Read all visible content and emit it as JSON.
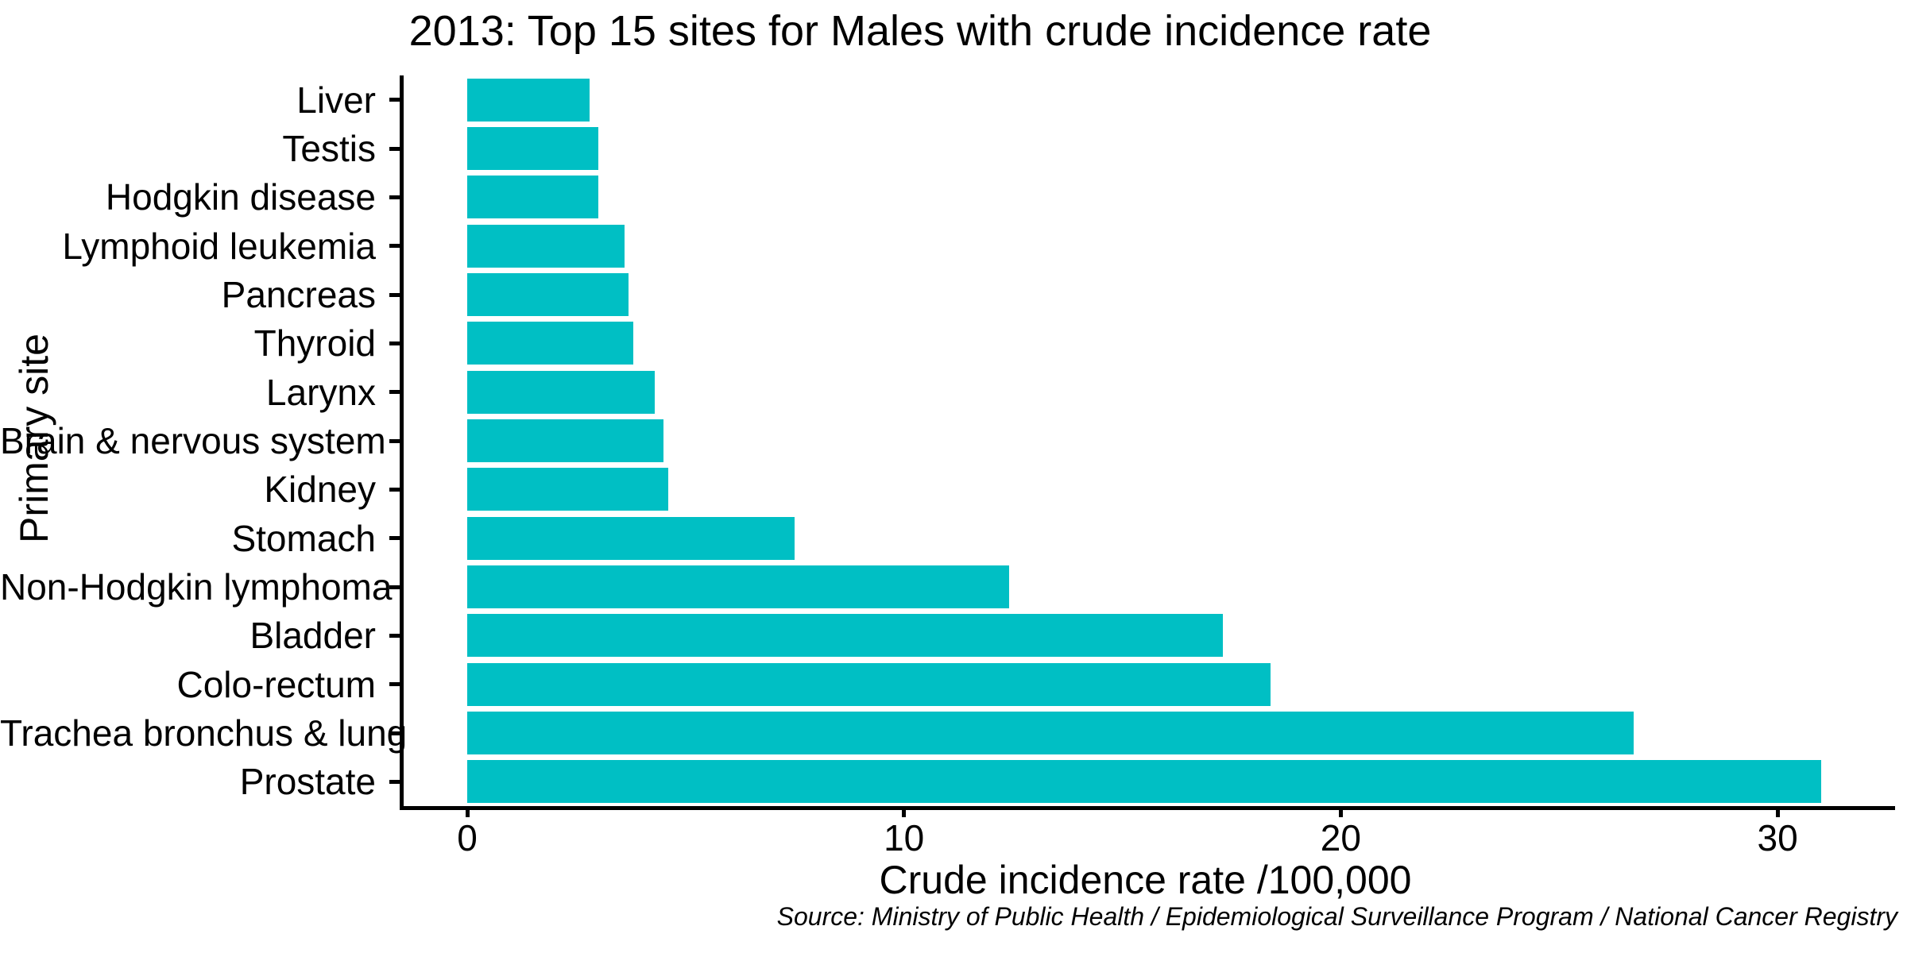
{
  "title": "2013: Top 15 sites for Males with crude incidence rate",
  "source_note": "Source: Ministry of Public Health / Epidemiological Surveillance Program / National Cancer Registry",
  "colors": {
    "bar_fill": "#00BFC4",
    "axis": "#000000",
    "background": "#FFFFFF"
  },
  "chart_data": {
    "type": "bar",
    "orientation": "horizontal",
    "title": "2013: Top 15 sites for Males with crude incidence rate",
    "xlabel": "Crude incidence rate /100,000",
    "ylabel": "Primary site",
    "categories": [
      "Liver",
      "Testis",
      "Hodgkin disease",
      "Lymphoid leukemia",
      "Pancreas",
      "Thyroid",
      "Larynx",
      "Brain & nervous system",
      "Kidney",
      "Stomach",
      "Non-Hodgkin lymphoma",
      "Bladder",
      "Colo-rectum",
      "Trachea bronchus & lung",
      "Prostate"
    ],
    "values": [
      2.8,
      3.0,
      3.0,
      3.6,
      3.7,
      3.8,
      4.3,
      4.5,
      4.6,
      7.5,
      12.4,
      17.3,
      18.4,
      26.7,
      31.0
    ],
    "xticks": [
      0,
      10,
      20,
      30
    ],
    "xlim": [
      -1.55,
      32.6
    ],
    "grid": false,
    "legend": "none",
    "bar_color": "#00BFC4"
  }
}
